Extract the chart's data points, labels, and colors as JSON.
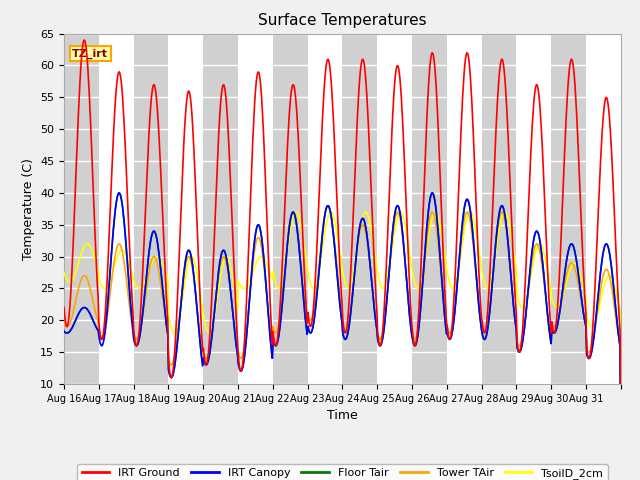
{
  "title": "Surface Temperatures",
  "xlabel": "Time",
  "ylabel": "Temperature (C)",
  "ylim": [
    10,
    65
  ],
  "annotation": "TZ_irt",
  "x_tick_labels": [
    "Aug 16",
    "Aug 17",
    "Aug 18",
    "Aug 19",
    "Aug 20",
    "Aug 21",
    "Aug 22",
    "Aug 23",
    "Aug 24",
    "Aug 25",
    "Aug 26",
    "Aug 27",
    "Aug 28",
    "Aug 29",
    "Aug 30",
    "Aug 31"
  ],
  "legend_labels": [
    "IRT Ground",
    "IRT Canopy",
    "Floor Tair",
    "Tower TAir",
    "TsoilD_2cm"
  ],
  "colors": [
    "red",
    "blue",
    "green",
    "orange",
    "yellow"
  ],
  "n_days": 16,
  "pts_per_day": 48,
  "irt_ground_peaks": [
    64,
    59,
    57,
    56,
    57,
    59,
    57,
    61,
    61,
    60,
    62,
    62,
    61,
    57,
    61,
    55
  ],
  "irt_ground_mins": [
    19,
    17,
    16,
    11,
    13,
    12,
    16,
    19,
    18,
    16,
    16,
    17,
    18,
    15,
    18,
    14
  ],
  "canopy_peaks": [
    22,
    40,
    34,
    31,
    31,
    35,
    37,
    38,
    36,
    38,
    40,
    39,
    38,
    34,
    32,
    32
  ],
  "canopy_mins": [
    18,
    16,
    16,
    11,
    13,
    12,
    16,
    18,
    17,
    16,
    16,
    17,
    17,
    15,
    18,
    14
  ],
  "floor_peaks": [
    22,
    40,
    34,
    31,
    31,
    35,
    37,
    38,
    36,
    38,
    40,
    39,
    38,
    34,
    32,
    32
  ],
  "floor_mins": [
    18,
    17,
    16,
    11,
    13,
    12,
    16,
    18,
    17,
    16,
    16,
    17,
    17,
    15,
    18,
    14
  ],
  "tower_peaks": [
    27,
    32,
    30,
    30,
    30,
    33,
    37,
    38,
    35,
    37,
    37,
    37,
    37,
    32,
    29,
    28
  ],
  "tower_mins": [
    19,
    17,
    17,
    13,
    14,
    14,
    18,
    20,
    18,
    17,
    17,
    18,
    18,
    16,
    19,
    15
  ],
  "soil_peaks": [
    32,
    31,
    30,
    30,
    30,
    30,
    37,
    37,
    37,
    37,
    37,
    37,
    37,
    32,
    29,
    27
  ],
  "soil_mins": [
    26,
    25,
    25,
    18,
    18,
    25,
    25,
    25,
    25,
    25,
    25,
    25,
    25,
    22,
    22,
    19
  ]
}
